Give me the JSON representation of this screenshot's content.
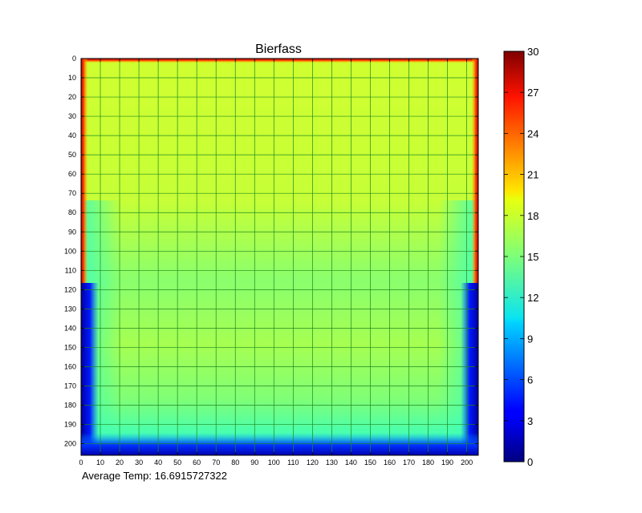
{
  "chart_data": {
    "type": "heatmap",
    "title": "Bierfass",
    "xlabel": "",
    "ylabel": "",
    "xlim": [
      0,
      206
    ],
    "ylim": [
      206,
      0
    ],
    "x_ticks": [
      0,
      10,
      20,
      30,
      40,
      50,
      60,
      70,
      80,
      90,
      100,
      110,
      120,
      130,
      140,
      150,
      160,
      170,
      180,
      190,
      200
    ],
    "y_ticks": [
      0,
      10,
      20,
      30,
      40,
      50,
      60,
      70,
      80,
      90,
      100,
      110,
      120,
      130,
      140,
      150,
      160,
      170,
      180,
      190,
      200
    ],
    "grid": true,
    "colormap": "jet",
    "colorbar": {
      "range": [
        0,
        30
      ],
      "ticks": [
        0,
        3,
        6,
        9,
        12,
        15,
        18,
        21,
        24,
        27,
        30
      ]
    },
    "regions": [
      {
        "region": "interior, rows 0-80",
        "temperature": 17.5
      },
      {
        "region": "interior, rows 120-195",
        "temperature": 15.5
      },
      {
        "region": "top wall, row 0",
        "temperature": 30
      },
      {
        "region": "side walls, rows 0-117",
        "temperature": 30
      },
      {
        "region": "side walls, rows 118-206",
        "temperature": 3
      },
      {
        "region": "bottom edge, rows 200-206",
        "temperature": 3
      }
    ]
  },
  "footer": {
    "label": "Average Temp:",
    "value": "16.6915727322"
  }
}
